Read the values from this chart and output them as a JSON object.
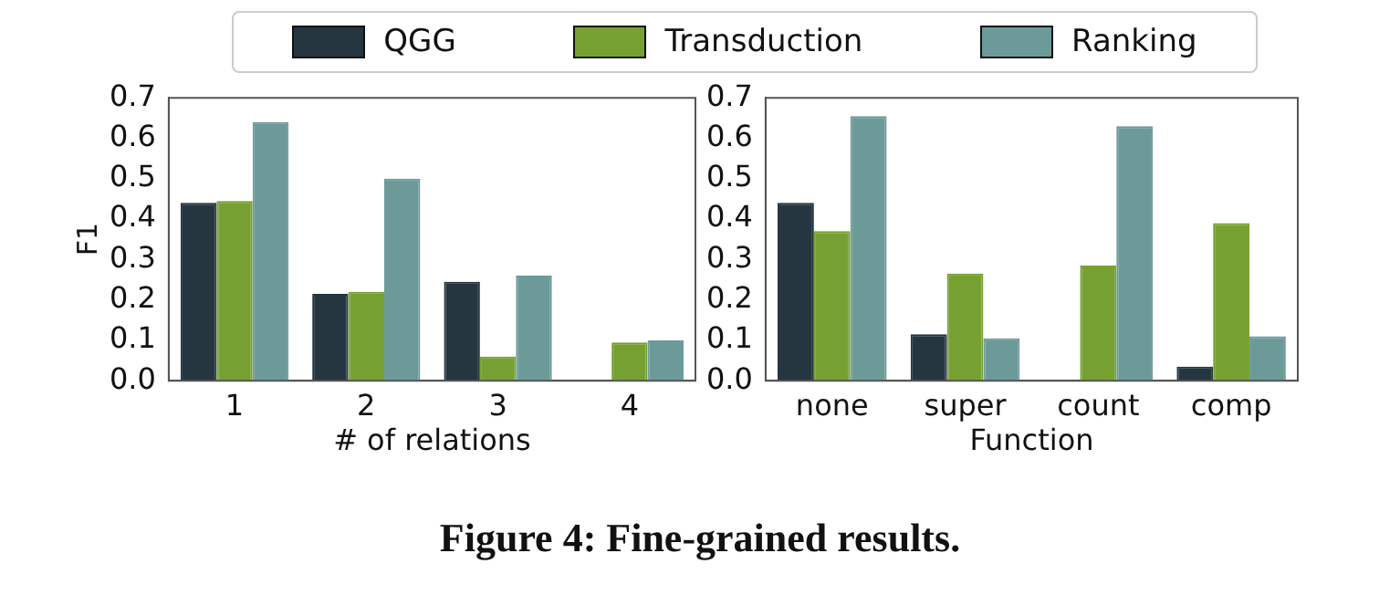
{
  "chart_data": [
    {
      "type": "bar",
      "ylabel": "F1",
      "xlabel": "# of relations",
      "categories": [
        "1",
        "2",
        "3",
        "4"
      ],
      "legend": "top",
      "grid": false,
      "ylim": [
        0,
        0.7
      ],
      "yticks": [
        {
          "value": 0,
          "label": "0.0"
        },
        0.1,
        0.2,
        0.3,
        0.4,
        0.5,
        0.6,
        0.7
      ],
      "series": [
        {
          "name": "QGG",
          "color": "#263640",
          "values": [
            0.44,
            0.215,
            0.245,
            0
          ]
        },
        {
          "name": "Transduction",
          "color": "#76a132",
          "values": [
            0.445,
            0.22,
            0.06,
            0.095
          ]
        },
        {
          "name": "Ranking",
          "color": "#6c9a99",
          "values": [
            0.64,
            0.5,
            0.26,
            0.1
          ]
        }
      ],
      "annotations": [
        "Figure 4: Fine-grained results."
      ]
    },
    {
      "type": "bar",
      "xlabel": "Function",
      "categories": [
        "none",
        "super",
        "count",
        "comp"
      ],
      "grid": false,
      "ylim": [
        0,
        0.7
      ],
      "yticks": [
        {
          "value": 0,
          "label": "0.0"
        },
        0.1,
        0.2,
        0.3,
        0.4,
        0.5,
        0.6,
        0.7
      ],
      "series": [
        {
          "color": "#263640",
          "values": [
            0.44,
            0.115,
            0,
            0.035
          ]
        },
        {
          "color": "#76a132",
          "values": [
            0.37,
            0.265,
            0.285,
            0.39
          ]
        },
        {
          "color": "#6c9a99",
          "values": [
            0.655,
            0.105,
            0.63,
            0.11
          ]
        }
      ]
    }
  ]
}
